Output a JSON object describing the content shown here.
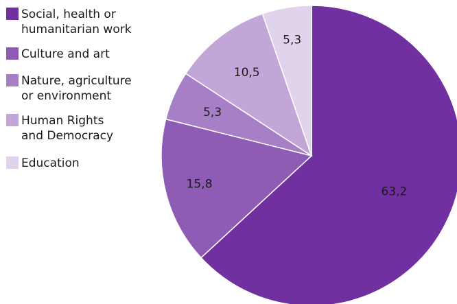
{
  "chart_data": {
    "type": "pie",
    "title": "",
    "slices": [
      {
        "label": "Social, health or\nhumanitarian work",
        "value": 63.2,
        "value_label": "63,2",
        "color": "#7030a0"
      },
      {
        "label": "Culture and art",
        "value": 15.8,
        "value_label": "15,8",
        "color": "#8e5bb5"
      },
      {
        "label": "Nature, agriculture\nor environment",
        "value": 5.3,
        "value_label": "5,3",
        "color": "#a67fc6"
      },
      {
        "label": "Human Rights\nand Democracy",
        "value": 10.5,
        "value_label": "10,5",
        "color": "#c3a6d8"
      },
      {
        "label": "Education",
        "value": 5.3,
        "value_label": "5,3",
        "color": "#e0d3ec"
      }
    ],
    "start_angle_deg": 0,
    "direction": "clockwise",
    "legend_position": "top-left"
  }
}
